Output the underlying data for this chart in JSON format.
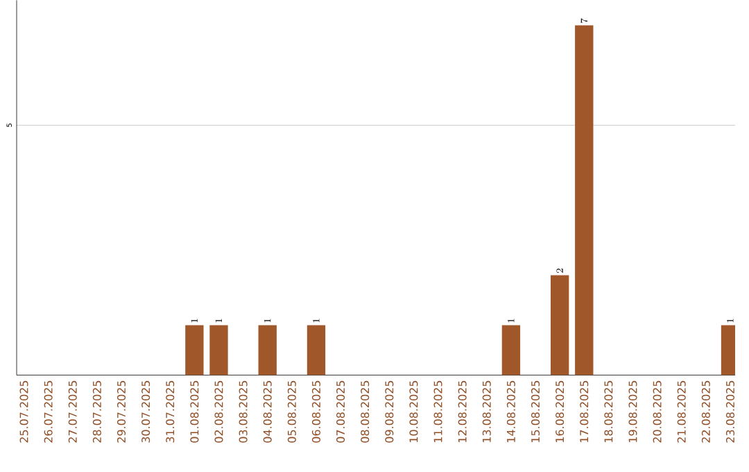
{
  "chart_data": {
    "type": "bar",
    "categories": [
      "25.07.2025",
      "26.07.2025",
      "27.07.2025",
      "28.07.2025",
      "29.07.2025",
      "30.07.2025",
      "31.07.2025",
      "01.08.2025",
      "02.08.2025",
      "03.08.2025",
      "04.08.2025",
      "05.08.2025",
      "06.08.2025",
      "07.08.2025",
      "08.08.2025",
      "09.08.2025",
      "10.08.2025",
      "11.08.2025",
      "12.08.2025",
      "13.08.2025",
      "14.08.2025",
      "15.08.2025",
      "16.08.2025",
      "17.08.2025",
      "18.08.2025",
      "19.08.2025",
      "20.08.2025",
      "21.08.2025",
      "22.08.2025",
      "23.08.2025"
    ],
    "values": [
      null,
      null,
      null,
      null,
      null,
      null,
      null,
      1,
      1,
      null,
      1,
      null,
      1,
      null,
      null,
      null,
      null,
      null,
      null,
      null,
      1,
      null,
      2,
      7,
      null,
      null,
      null,
      null,
      null,
      1
    ],
    "color": "#a0582a",
    "ylim": [
      0,
      7.5
    ],
    "yticks": [
      5
    ],
    "grid": "y",
    "data_labels": true
  }
}
